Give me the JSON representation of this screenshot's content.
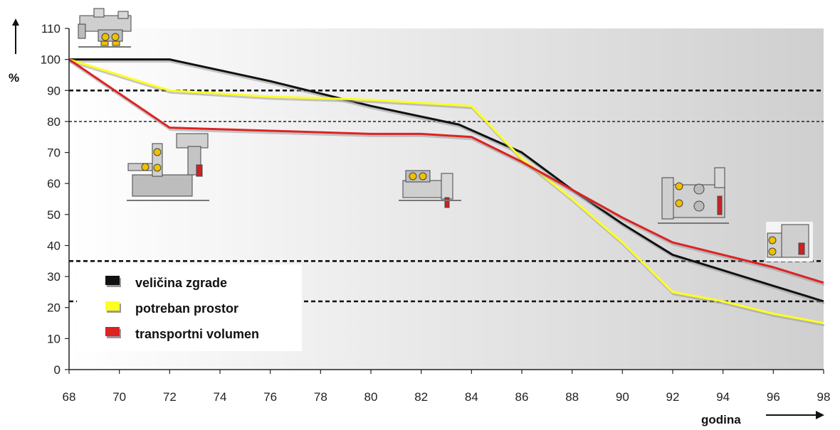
{
  "chart_data": {
    "type": "line",
    "xlabel": "godina",
    "ylabel": "%",
    "x": [
      68,
      70,
      72,
      74,
      76,
      78,
      80,
      82,
      84,
      86,
      88,
      90,
      92,
      94,
      96,
      98
    ],
    "xlim": [
      68,
      98
    ],
    "ylim": [
      0,
      110
    ],
    "x_ticks": [
      "68",
      "70",
      "72",
      "74",
      "76",
      "78",
      "80",
      "82",
      "84",
      "86",
      "88",
      "90",
      "92",
      "94",
      "96",
      "98"
    ],
    "y_ticks": [
      "0",
      "10",
      "20",
      "30",
      "40",
      "50",
      "60",
      "70",
      "80",
      "90",
      "100",
      "110"
    ],
    "grid": false,
    "legend_position": "bottom-left",
    "reference_lines": [
      90,
      80,
      35,
      22
    ],
    "series": [
      {
        "name": "veličina zgrade",
        "color": "#111111",
        "points": [
          [
            68,
            100
          ],
          [
            72,
            100
          ],
          [
            76,
            93
          ],
          [
            80,
            85
          ],
          [
            83.5,
            79
          ],
          [
            86,
            70
          ],
          [
            88,
            58
          ],
          [
            90,
            47
          ],
          [
            92,
            37
          ],
          [
            94,
            32
          ],
          [
            96,
            27
          ],
          [
            98,
            22
          ]
        ]
      },
      {
        "name": "potreban prostor",
        "color": "#ffff22",
        "points": [
          [
            68,
            100
          ],
          [
            72,
            90
          ],
          [
            76,
            88
          ],
          [
            80,
            87
          ],
          [
            84,
            85
          ],
          [
            86,
            68
          ],
          [
            88,
            55
          ],
          [
            90,
            41
          ],
          [
            92,
            25
          ],
          [
            94,
            22
          ],
          [
            96,
            18
          ],
          [
            98,
            15
          ]
        ]
      },
      {
        "name": "transportni volumen",
        "color": "#dd2222",
        "points": [
          [
            68,
            100
          ],
          [
            72,
            78
          ],
          [
            76,
            77
          ],
          [
            80,
            76
          ],
          [
            82,
            76
          ],
          [
            84,
            75
          ],
          [
            86,
            67
          ],
          [
            88,
            58
          ],
          [
            90,
            49
          ],
          [
            92,
            41
          ],
          [
            94,
            37
          ],
          [
            96,
            33
          ],
          [
            98,
            28
          ]
        ]
      }
    ]
  }
}
